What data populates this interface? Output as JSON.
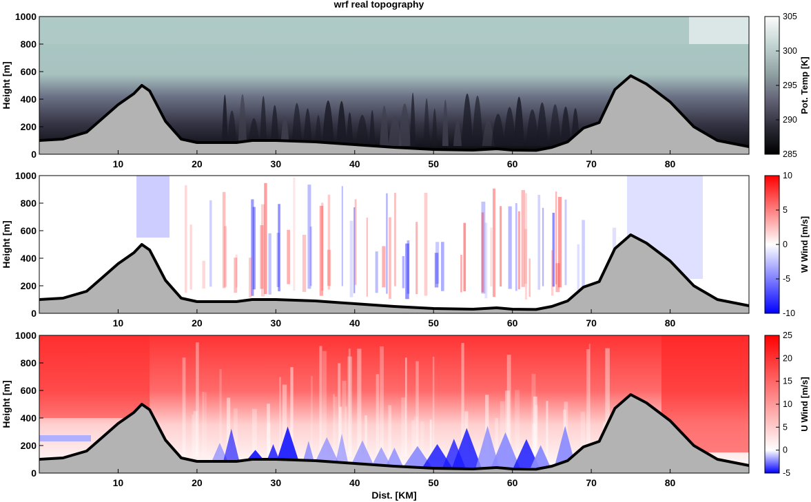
{
  "title": "wrf real topography",
  "colors": {
    "terrain_fill": "#b3b3b3",
    "terrain_line": "#000000",
    "temp_low": "#000000",
    "temp_mid": "#5c5c70",
    "temp_high": "#fbfcfc",
    "temp_upper": "#aac8c4",
    "wind_pos": "#ff0000",
    "wind_neg": "#0000ff",
    "wind_zero": "#ffffff"
  },
  "chart_data": [
    {
      "type": "heatmap",
      "name": "potential-temperature",
      "title": "wrf real topography",
      "xlabel": "",
      "ylabel": "Height [m]",
      "xlim": [
        0,
        90
      ],
      "ylim": [
        0,
        1000
      ],
      "xticks": [
        "10",
        "20",
        "30",
        "40",
        "50",
        "60",
        "70",
        "80"
      ],
      "yticks": [
        "0",
        "200",
        "400",
        "600",
        "800",
        "1000"
      ],
      "colorbar": {
        "label": "Pot. Temp [K]",
        "range": [
          285,
          305
        ],
        "ticks": [
          "285",
          "290",
          "295",
          "300",
          "305"
        ]
      },
      "terrain": {
        "x": [
          0,
          3,
          6,
          8,
          10,
          12,
          13,
          14,
          16,
          18,
          20,
          25,
          27,
          30,
          35,
          40,
          45,
          50,
          55,
          58,
          60,
          63,
          65,
          67,
          69,
          71,
          73,
          75,
          77,
          80,
          83,
          86,
          90
        ],
        "y": [
          100,
          110,
          160,
          260,
          360,
          440,
          500,
          460,
          240,
          110,
          85,
          85,
          100,
          100,
          90,
          70,
          50,
          35,
          30,
          40,
          30,
          28,
          50,
          90,
          190,
          230,
          470,
          570,
          510,
          380,
          200,
          100,
          55
        ]
      }
    },
    {
      "type": "heatmap",
      "name": "vertical-wind",
      "title": "",
      "xlabel": "",
      "ylabel": "Height [m]",
      "xlim": [
        0,
        90
      ],
      "ylim": [
        0,
        1000
      ],
      "xticks": [
        "10",
        "20",
        "30",
        "40",
        "50",
        "60",
        "70",
        "80"
      ],
      "yticks": [
        "0",
        "200",
        "400",
        "600",
        "800",
        "1000"
      ],
      "colorbar": {
        "label": "W Wind [m/s]",
        "range": [
          -10,
          10
        ],
        "ticks": [
          "-10",
          "-5",
          "0",
          "5",
          "10"
        ]
      },
      "terrain": {
        "same_as": "potential-temperature"
      }
    },
    {
      "type": "heatmap",
      "name": "horizontal-wind",
      "title": "",
      "xlabel": "Dist. [KM]",
      "ylabel": "Height [m]",
      "xlim": [
        0,
        90
      ],
      "ylim": [
        0,
        1000
      ],
      "xticks": [
        "10",
        "20",
        "30",
        "40",
        "50",
        "60",
        "70",
        "80"
      ],
      "yticks": [
        "0",
        "200",
        "400",
        "600",
        "800",
        "1000"
      ],
      "colorbar": {
        "label": "U Wind [m/s]",
        "range": [
          -5,
          25
        ],
        "ticks": [
          "-5",
          "0",
          "5",
          "10",
          "15",
          "20",
          "25"
        ]
      },
      "terrain": {
        "same_as": "potential-temperature"
      }
    }
  ]
}
